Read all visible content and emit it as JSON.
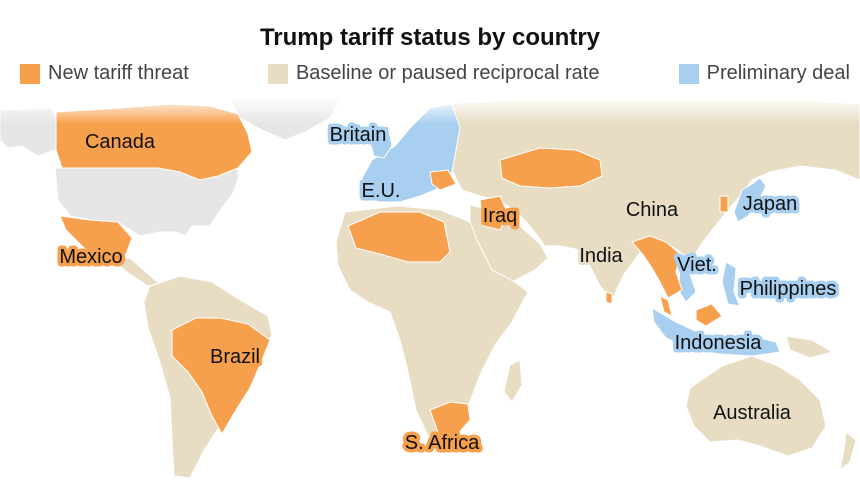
{
  "title": "Trump tariff status by country",
  "legend": [
    {
      "label": "New tariff threat",
      "color": "#f6a04d"
    },
    {
      "label": "Baseline or paused reciprocal rate",
      "color": "#e8dcc3"
    },
    {
      "label": "Preliminary deal",
      "color": "#a9cff0"
    }
  ],
  "colors": {
    "threat": "#f6a04d",
    "baseline": "#e8dcc3",
    "deal": "#a9cff0",
    "unmarked": "#e6e6e6",
    "background": "#ffffff"
  },
  "labels": {
    "canada": "Canada",
    "mexico": "Mexico",
    "brazil": "Brazil",
    "south_africa": "S. Africa",
    "iraq": "Iraq",
    "britain": "Britain",
    "eu": "E.U.",
    "china": "China",
    "india": "India",
    "japan": "Japan",
    "vietnam": "Viet.",
    "philippines": "Philippines",
    "indonesia": "Indonesia",
    "australia": "Australia"
  }
}
